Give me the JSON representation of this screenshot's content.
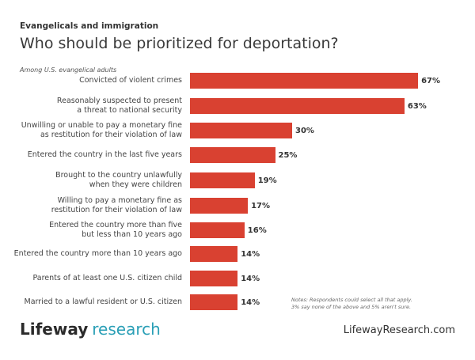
{
  "chart_data": {
    "type": "bar",
    "kicker": "Evangelicals and immigration",
    "title": "Who should be prioritized for deportation?",
    "subtitle": "Among U.S. evangelical adults",
    "categories": [
      "Convicted of violent crimes",
      "Reasonably suspected to present a threat to national security",
      "Unwilling or unable to pay a monetary fine as restitution for their violation of law",
      "Entered the country in the last five years",
      "Brought to the country unlawfully when they were children",
      "Willing to pay a monetary fine as restitution for their violation of law",
      "Entered the country more than five but less than 10 years ago",
      "Entered the country more than 10 years ago",
      "Parents of at least one U.S. citizen child",
      "Married to a lawful resident or U.S. citizen"
    ],
    "labels": [
      [
        "Convicted of violent crimes"
      ],
      [
        "Reasonably suspected to present",
        "a threat to national security"
      ],
      [
        "Unwilling or unable to pay a monetary fine",
        "as restitution for their violation of law"
      ],
      [
        "Entered the country in the last five years"
      ],
      [
        "Brought to the country unlawfully",
        "when they were children"
      ],
      [
        "Willing to pay a monetary fine as",
        "restitution for their violation of law"
      ],
      [
        "Entered the country more than five",
        "but less than 10 years ago"
      ],
      [
        "Entered the country more than 10 years ago"
      ],
      [
        "Parents of at least one U.S. citizen child"
      ],
      [
        "Married to a lawful resident or U.S. citizen"
      ]
    ],
    "values": [
      67,
      63,
      30,
      25,
      19,
      17,
      16,
      14,
      14,
      14
    ],
    "value_suffix": "%",
    "bar_color": "#d94131",
    "xlim": [
      0,
      100
    ]
  },
  "notes": [
    "Notes: Respondents could select all that apply.",
    "3% say none of the above and 5% aren't sure."
  ],
  "footer": {
    "logo_a": "Lifeway",
    "logo_b": "research",
    "url": "LifewayResearch.com"
  }
}
